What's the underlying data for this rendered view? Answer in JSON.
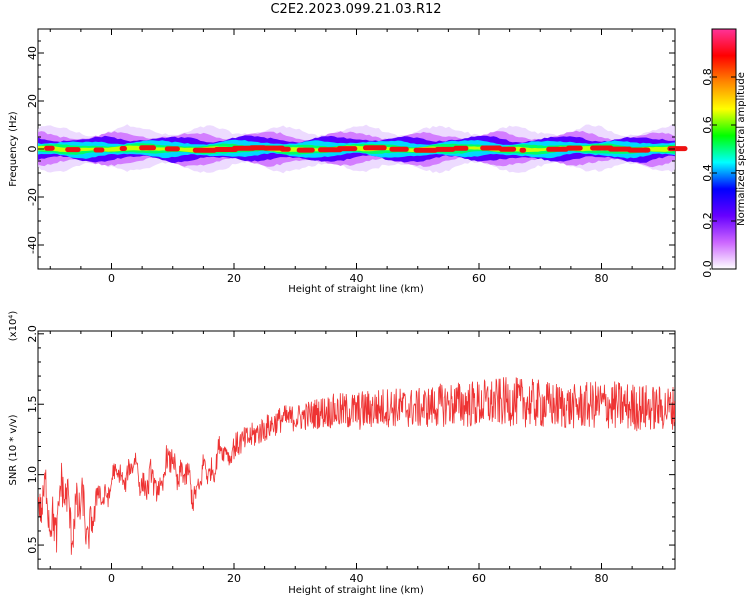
{
  "title": "C2E2.2023.099.21.03.R12",
  "chart_data": [
    {
      "type": "heatmap",
      "xlabel": "Height of straight line (km)",
      "ylabel": "Frequency (Hz)",
      "xlim": [
        -12,
        92
      ],
      "ylim": [
        -50,
        50
      ],
      "xticks": [
        "0",
        "20",
        "40",
        "60",
        "80"
      ],
      "yticks": [
        "-40",
        "-20",
        "0",
        "20",
        "40"
      ],
      "band_center_hz": 0,
      "band_halfwidth_hz": 4,
      "colorbar": {
        "label": "Normalized spectral amplitude",
        "range": [
          0,
          1
        ],
        "ticks": [
          "0.0",
          "0.2",
          "0.4",
          "0.6",
          "0.8"
        ],
        "colors": [
          "#ffffff",
          "#cc66ff",
          "#6600ff",
          "#0000ff",
          "#00ffff",
          "#00ff00",
          "#ffff00",
          "#ff8800",
          "#ff0000",
          "#ff3399"
        ]
      },
      "peak_color": "#ee1111"
    },
    {
      "type": "line",
      "xlabel": "Height of straight line (km)",
      "ylabel": "SNR (10 * v/v)",
      "yscale_note": "(x10⁴)",
      "xlim": [
        -12,
        92
      ],
      "ylim": [
        0.33,
        2.02
      ],
      "xticks": [
        "0",
        "20",
        "40",
        "60",
        "80"
      ],
      "yticks": [
        "0.5",
        "1.0",
        "1.5",
        "2.0"
      ],
      "series": [
        {
          "color": "#ee3333",
          "x": [
            -12,
            -10,
            -8,
            -6,
            -4,
            -2,
            0,
            2,
            4,
            6,
            8,
            10,
            12,
            14,
            16,
            18,
            20,
            22,
            24,
            26,
            28,
            30,
            35,
            40,
            45,
            50,
            55,
            60,
            65,
            70,
            75,
            80,
            85,
            90,
            92
          ],
          "y": [
            0.85,
            0.7,
            0.8,
            0.75,
            0.65,
            0.8,
            0.95,
            1.0,
            1.05,
            0.9,
            0.95,
            1.1,
            0.95,
            0.9,
            1.05,
            1.15,
            1.2,
            1.25,
            1.3,
            1.35,
            1.4,
            1.4,
            1.45,
            1.45,
            1.48,
            1.47,
            1.5,
            1.5,
            1.52,
            1.5,
            1.48,
            1.5,
            1.48,
            1.47,
            1.48
          ],
          "noise": [
            0.25,
            0.35,
            0.35,
            0.35,
            0.3,
            0.2,
            0.15,
            0.15,
            0.15,
            0.2,
            0.2,
            0.2,
            0.2,
            0.2,
            0.18,
            0.15,
            0.12,
            0.12,
            0.12,
            0.12,
            0.12,
            0.12,
            0.15,
            0.18,
            0.18,
            0.18,
            0.2,
            0.22,
            0.22,
            0.22,
            0.2,
            0.22,
            0.22,
            0.2,
            0.2
          ]
        }
      ]
    }
  ]
}
